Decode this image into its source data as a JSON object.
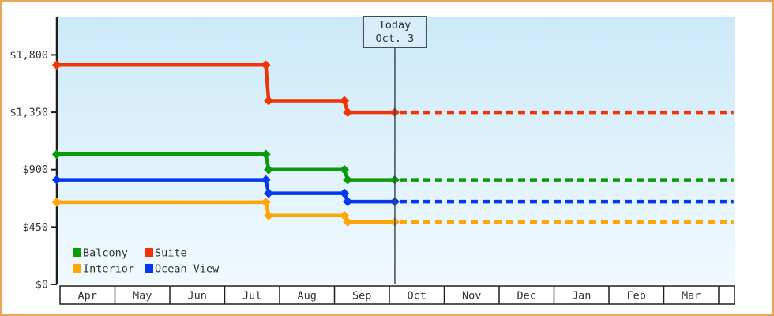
{
  "chart_data": {
    "type": "line",
    "subtype": "step-price-history",
    "title": "",
    "x_axis": {
      "months": [
        "Apr",
        "May",
        "Jun",
        "Jul",
        "Aug",
        "Sep",
        "Oct",
        "Nov",
        "Dec",
        "Jan",
        "Feb",
        "Mar"
      ]
    },
    "y_axis": {
      "ticks": [
        {
          "value": 1800,
          "label": "$1,800"
        },
        {
          "value": 1350,
          "label": "$1,350"
        },
        {
          "value": 900,
          "label": "$900"
        },
        {
          "value": 450,
          "label": "$450"
        },
        {
          "value": 0,
          "label": "$0"
        }
      ],
      "ylim": [
        0,
        2100
      ]
    },
    "today_annotation": {
      "line1": "Today",
      "line2": "Oct. 3",
      "x_months": 6.1
    },
    "projection_end_x_months": 12.27,
    "series": [
      {
        "name": "Suite",
        "color": "#ef3507",
        "points": [
          [
            -0.06,
            1720
          ],
          [
            3.75,
            1720
          ],
          [
            3.8,
            1440
          ],
          [
            5.18,
            1440
          ],
          [
            5.24,
            1350
          ],
          [
            6.1,
            1350
          ]
        ],
        "projected_value": 1350
      },
      {
        "name": "Balcony",
        "color": "#0a9a0a",
        "points": [
          [
            -0.06,
            1020
          ],
          [
            3.75,
            1020
          ],
          [
            3.8,
            900
          ],
          [
            5.18,
            900
          ],
          [
            5.24,
            820
          ],
          [
            6.1,
            820
          ]
        ],
        "projected_value": 820
      },
      {
        "name": "Ocean View",
        "color": "#0338ee",
        "points": [
          [
            -0.06,
            820
          ],
          [
            3.75,
            820
          ],
          [
            3.8,
            715
          ],
          [
            5.18,
            715
          ],
          [
            5.24,
            650
          ],
          [
            6.1,
            650
          ]
        ],
        "projected_value": 650
      },
      {
        "name": "Interior",
        "color": "#ffa505",
        "points": [
          [
            -0.06,
            645
          ],
          [
            3.75,
            645
          ],
          [
            3.8,
            540
          ],
          [
            5.18,
            540
          ],
          [
            5.24,
            490
          ],
          [
            6.1,
            490
          ]
        ],
        "projected_value": 490
      }
    ],
    "legend_rows": [
      [
        "Balcony",
        "Suite"
      ],
      [
        "Interior",
        "Ocean View"
      ]
    ],
    "legend_position": "bottom-left-inside"
  },
  "colors": {
    "frame_border": "#e9a458",
    "plot_bg_top": "#cce9f9",
    "plot_bg_bottom": "#f1fafe",
    "axis": "#1e1e1e",
    "text": "#333333",
    "today_line": "#3d4d57",
    "today_box_fill": "#d7eefa",
    "month_band_fill": "#ffffff"
  }
}
